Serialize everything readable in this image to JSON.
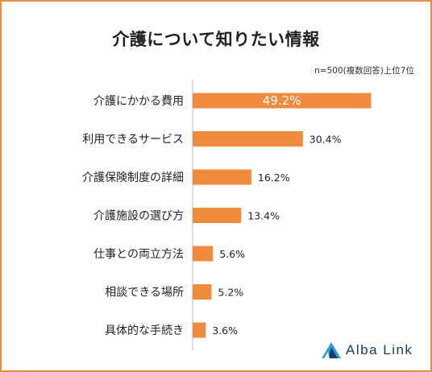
{
  "brand": {
    "name": "Alba Link",
    "accent": "#f08a3c",
    "logo_colors": [
      "#2aa0d8",
      "#1d3a6e"
    ]
  },
  "chart_data": {
    "type": "bar",
    "orientation": "horizontal",
    "title": "介護について知りたい情報",
    "note": "n=500(複数回答)上位7位",
    "categories": [
      "介護にかかる費用",
      "利用できるサービス",
      "介護保険制度の詳細",
      "介護施設の選び方",
      "仕事との両立方法",
      "相談できる場所",
      "具体的な手続き"
    ],
    "values": [
      49.2,
      30.4,
      16.2,
      13.4,
      5.6,
      5.2,
      3.6
    ],
    "value_labels": [
      "49.2%",
      "30.4%",
      "16.2%",
      "13.4%",
      "5.6%",
      "5.2%",
      "3.6%"
    ],
    "bar_color": "#f08a3c",
    "xlim": [
      0,
      50
    ],
    "grid": false,
    "legend": "none"
  }
}
